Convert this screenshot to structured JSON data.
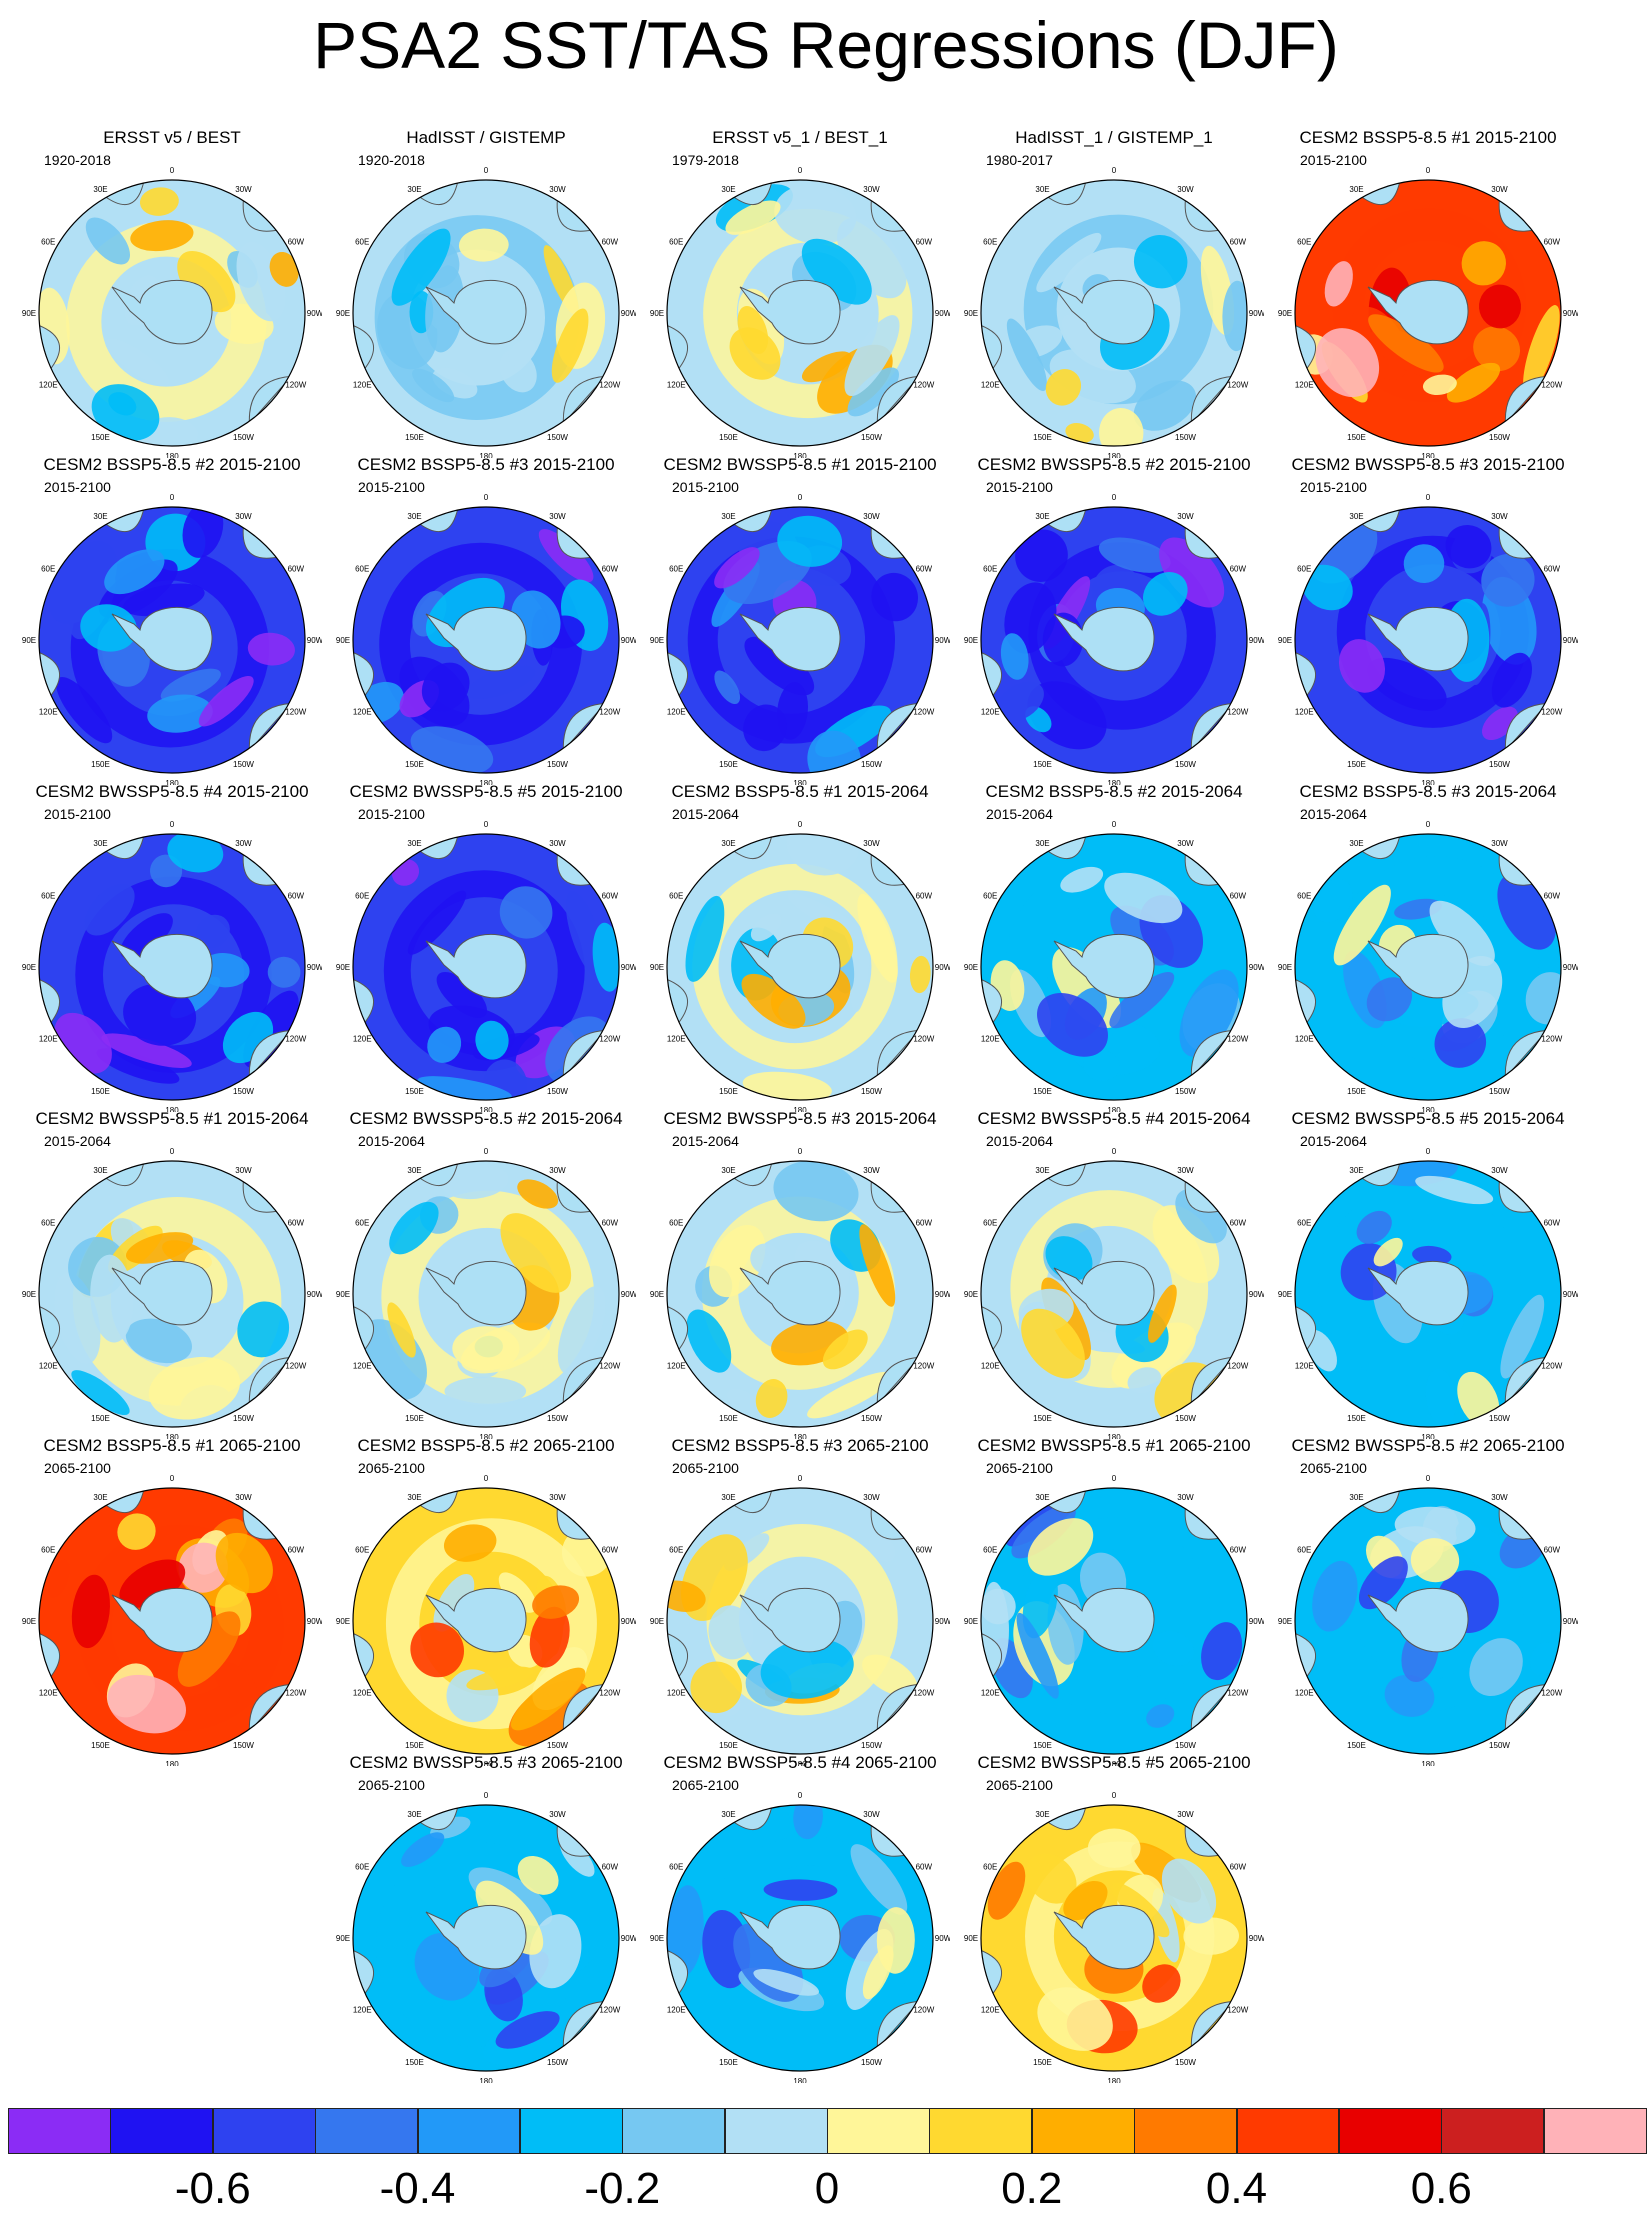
{
  "title": "PSA2 SST/TAS Regressions (DJF)",
  "longitude_labels": [
    "0",
    "30E",
    "60E",
    "90E",
    "120E",
    "150E",
    "180",
    "150W",
    "120W",
    "90W",
    "60W",
    "30W"
  ],
  "chart_data": {
    "type": "heatmap",
    "projection": "south-polar-stereographic",
    "title": "PSA2 SST/TAS Regressions (DJF)",
    "panels": [
      {
        "title": "ERSST v5 / BEST",
        "period": "1920-2018",
        "pattern": "mixed-weak"
      },
      {
        "title": "HadISST / GISTEMP",
        "period": "1920-2018",
        "pattern": "weak-negative"
      },
      {
        "title": "ERSST v5_1 / BEST_1",
        "period": "1979-2018",
        "pattern": "mixed-weak"
      },
      {
        "title": "HadISST_1 / GISTEMP_1",
        "period": "1980-2017",
        "pattern": "weak-negative"
      },
      {
        "title": "CESM2 BSSP5-8.5 #1 2015-2100",
        "period": "2015-2100",
        "pattern": "strong-positive"
      },
      {
        "title": "CESM2 BSSP5-8.5 #2 2015-2100",
        "period": "2015-2100",
        "pattern": "strong-negative"
      },
      {
        "title": "CESM2 BSSP5-8.5 #3 2015-2100",
        "period": "2015-2100",
        "pattern": "strong-negative"
      },
      {
        "title": "CESM2 BWSSP5-8.5 #1 2015-2100",
        "period": "2015-2100",
        "pattern": "strong-negative"
      },
      {
        "title": "CESM2 BWSSP5-8.5 #2 2015-2100",
        "period": "2015-2100",
        "pattern": "strong-negative"
      },
      {
        "title": "CESM2 BWSSP5-8.5 #3 2015-2100",
        "period": "2015-2100",
        "pattern": "strong-negative"
      },
      {
        "title": "CESM2 BWSSP5-8.5 #4 2015-2100",
        "period": "2015-2100",
        "pattern": "strong-negative"
      },
      {
        "title": "CESM2 BWSSP5-8.5 #5 2015-2100",
        "period": "2015-2100",
        "pattern": "strong-negative"
      },
      {
        "title": "CESM2 BSSP5-8.5 #1 2015-2064",
        "period": "2015-2064",
        "pattern": "mixed-weak"
      },
      {
        "title": "CESM2 BSSP5-8.5 #2 2015-2064",
        "period": "2015-2064",
        "pattern": "moderate-negative"
      },
      {
        "title": "CESM2 BSSP5-8.5 #3 2015-2064",
        "period": "2015-2064",
        "pattern": "moderate-negative"
      },
      {
        "title": "CESM2 BWSSP5-8.5 #1 2015-2064",
        "period": "2015-2064",
        "pattern": "mixed-weak"
      },
      {
        "title": "CESM2 BWSSP5-8.5 #2 2015-2064",
        "period": "2015-2064",
        "pattern": "mixed-weak"
      },
      {
        "title": "CESM2 BWSSP5-8.5 #3 2015-2064",
        "period": "2015-2064",
        "pattern": "mixed-weak"
      },
      {
        "title": "CESM2 BWSSP5-8.5 #4 2015-2064",
        "period": "2015-2064",
        "pattern": "mixed-weak"
      },
      {
        "title": "CESM2 BWSSP5-8.5 #5 2015-2064",
        "period": "2015-2064",
        "pattern": "moderate-negative"
      },
      {
        "title": "CESM2 BSSP5-8.5 #1 2065-2100",
        "period": "2065-2100",
        "pattern": "strong-positive"
      },
      {
        "title": "CESM2 BSSP5-8.5 #2 2065-2100",
        "period": "2065-2100",
        "pattern": "moderate-positive"
      },
      {
        "title": "CESM2 BSSP5-8.5 #3 2065-2100",
        "period": "2065-2100",
        "pattern": "mixed-weak"
      },
      {
        "title": "CESM2 BWSSP5-8.5 #1 2065-2100",
        "period": "2065-2100",
        "pattern": "moderate-negative"
      },
      {
        "title": "CESM2 BWSSP5-8.5 #2 2065-2100",
        "period": "2065-2100",
        "pattern": "moderate-negative"
      },
      {
        "title": "CESM2 BWSSP5-8.5 #3 2065-2100",
        "period": "2065-2100",
        "pattern": "moderate-negative"
      },
      {
        "title": "CESM2 BWSSP5-8.5 #4 2065-2100",
        "period": "2065-2100",
        "pattern": "moderate-negative"
      },
      {
        "title": "CESM2 BWSSP5-8.5 #5 2065-2100",
        "period": "2065-2100",
        "pattern": "moderate-positive"
      }
    ],
    "colorbar": {
      "levels": [
        -0.7,
        -0.6,
        -0.5,
        -0.4,
        -0.3,
        -0.2,
        -0.1,
        0,
        0.1,
        0.2,
        0.3,
        0.4,
        0.5,
        0.6,
        0.7
      ],
      "colors": [
        "#8b2cf5",
        "#1f12f2",
        "#2e42f0",
        "#3577ef",
        "#2299f8",
        "#00bdf7",
        "#76c8f2",
        "#b2e0f5",
        "#fff699",
        "#ffd930",
        "#ffae00",
        "#ff7a00",
        "#ff3a00",
        "#e80000",
        "#cc1f1f",
        "#ffb2b8"
      ],
      "tick_labels": [
        "-0.6",
        "-0.4",
        "-0.2",
        "0",
        "0.2",
        "0.4",
        "0.6"
      ],
      "tick_values": [
        -0.6,
        -0.4,
        -0.2,
        0,
        0.2,
        0.4,
        0.6
      ]
    }
  }
}
